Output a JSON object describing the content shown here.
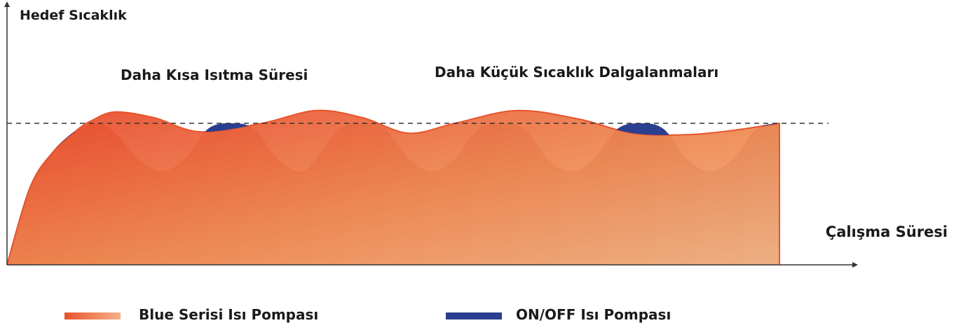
{
  "chart_data": {
    "type": "area",
    "ylabel": "Hedef Sıcaklık",
    "xlabel": "Çalışma Süresi",
    "target_line": {
      "value": 1.0,
      "style": "dashed"
    },
    "annotations": [
      {
        "text": "Daha Kısa Isıtma Süresi"
      },
      {
        "text": "Daha Küçük Sıcaklık Dalgalanmaları"
      }
    ],
    "xlim": [
      0,
      100
    ],
    "ylim": [
      0,
      1.35
    ],
    "series": [
      {
        "name": "Blue Serisi Isı Pompası",
        "color": "#e8532a",
        "x": [
          0,
          3,
          6,
          9,
          11,
          14,
          19,
          25,
          33,
          40,
          46,
          52,
          58,
          66,
          74,
          81,
          88,
          94,
          100
        ],
        "y": [
          0,
          0.55,
          0.8,
          0.95,
          1.02,
          1.08,
          1.04,
          0.94,
          1.0,
          1.09,
          1.04,
          0.93,
          1.0,
          1.09,
          1.03,
          0.93,
          0.92,
          0.95,
          1.0
        ]
      },
      {
        "name": "ON/OFF Isı Pompası",
        "color": "#2a3f8f",
        "x": [
          0,
          3,
          6,
          9,
          12,
          14,
          17,
          20,
          23,
          26,
          29,
          32,
          35,
          38,
          40,
          43,
          46,
          49,
          52,
          55,
          58,
          61,
          64,
          67,
          70,
          73,
          76,
          79,
          82,
          85,
          88,
          91,
          94,
          97,
          100
        ],
        "y": [
          0,
          0.55,
          0.8,
          0.95,
          1.0,
          0.93,
          0.75,
          0.66,
          0.75,
          0.96,
          1.0,
          0.96,
          0.75,
          0.66,
          0.75,
          0.96,
          1.0,
          0.96,
          0.75,
          0.66,
          0.75,
          0.96,
          1.0,
          0.96,
          0.75,
          0.66,
          0.75,
          0.96,
          1.0,
          0.96,
          0.75,
          0.66,
          0.75,
          0.96,
          1.0
        ]
      }
    ],
    "legend": {
      "placement": "bottom"
    }
  }
}
